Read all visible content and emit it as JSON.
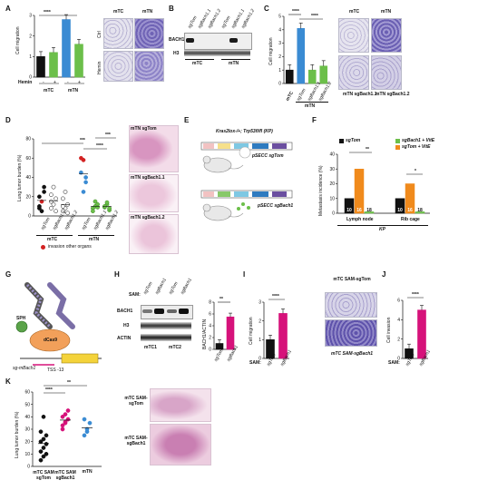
{
  "panel_letters": [
    "A",
    "B",
    "C",
    "D",
    "E",
    "F",
    "G",
    "H",
    "I",
    "J",
    "K"
  ],
  "colors": {
    "black": "#111111",
    "white": "#ffffff",
    "green": "#6cbf4a",
    "blue": "#3a8bd3",
    "orange": "#f08a1c",
    "magenta": "#d6127a",
    "red": "#d32222",
    "gray": "#bfbfbf"
  },
  "A": {
    "ylabel": "Cell migration",
    "sig": "****",
    "hemin_label": "Hemin",
    "hemin_signs": [
      "-",
      "+",
      "-",
      "+"
    ],
    "groups": [
      "mTC",
      "mTN"
    ],
    "image_headers": [
      "mTC",
      "mTN"
    ],
    "image_rows": [
      "Ctrl",
      "Hemin"
    ],
    "chart_data": {
      "type": "bar",
      "categories": [
        "mTC -",
        "mTC +",
        "mTN -",
        "mTN +"
      ],
      "values": [
        1.0,
        1.2,
        2.8,
        1.6
      ],
      "ylim": [
        0,
        3
      ],
      "yticks": [
        "0",
        "1",
        "2",
        "3"
      ],
      "ylabel": "Cell migration"
    }
  },
  "B": {
    "lane_labels": [
      "sgTom",
      "sgBach1.1",
      "sgBach1.2",
      "sgTom",
      "sgBach1.1",
      "sgBach1.2"
    ],
    "rows": [
      "BACH1",
      "H3"
    ],
    "groups": [
      "mTC",
      "mTN"
    ]
  },
  "C": {
    "ylabel": "Cell migration",
    "sig_left": "****",
    "sig_right": "****",
    "x_labels": [
      "mTC",
      "sgTom",
      "sgBach1.1",
      "sgBach1.2"
    ],
    "group": "mTN",
    "image_headers": [
      "mTC",
      "mTN"
    ],
    "image_captions": [
      "mTN sgBach1.1",
      "mTN sgBach1.2"
    ],
    "chart_data": {
      "type": "bar",
      "categories": [
        "mTC",
        "sgTom",
        "sgBach1.1",
        "sgBach1.2"
      ],
      "values": [
        1.0,
        4.1,
        1.0,
        1.3
      ],
      "ylim": [
        0,
        5
      ],
      "yticks": [
        "0",
        "1",
        "2",
        "3",
        "4",
        "5"
      ],
      "ylabel": "Cell migration"
    }
  },
  "D": {
    "ylabel": "Lung tumor burden (%)",
    "sig": [
      "***",
      "****",
      "***"
    ],
    "x_labels": [
      "sgTom",
      "sgBach1.1",
      "sgBach1.2",
      "sgTom",
      "sgBach1.1",
      "sgBach1.2"
    ],
    "groups": [
      "mTC",
      "mTN"
    ],
    "legend": "invasion other organs",
    "image_captions": [
      "mTN sgTom",
      "mTN sgBach1.1",
      "mTN sgBach1.2"
    ],
    "chart_data": {
      "type": "scatter",
      "categories": [
        "mTC sgTom",
        "mTC sgBach1.1",
        "mTC sgBach1.2",
        "mTN sgTom",
        "mTN sgBach1.1",
        "mTN sgBach1.2"
      ],
      "series": [
        {
          "values": [
            [
              20,
              15,
              25,
              10,
              5,
              30,
              8
            ],
            [
              22,
              12,
              18,
              8,
              30,
              5,
              15
            ],
            [
              18,
              8,
              12,
              5,
              25,
              3,
              10
            ],
            [
              45,
              58,
              35,
              60,
              25,
              40
            ],
            [
              8,
              10,
              12,
              5,
              15,
              9
            ],
            [
              9,
              12,
              6,
              10,
              14,
              8
            ]
          ]
        }
      ],
      "ylim": [
        0,
        80
      ],
      "yticks": [
        "0",
        "20",
        "40",
        "60",
        "80"
      ],
      "ylabel": "Lung tumor burden (%)"
    }
  },
  "E": {
    "title": "Kras2lox-/+; Trp53fl/fl (KP)",
    "construct1": "pSECC sgTom",
    "construct2": "pSECC sgBach1"
  },
  "F": {
    "ylabel": "Metastasis incidence (%)",
    "legend": [
      "sgTom",
      "sgBach1 + VitE",
      "sgTom + VitE"
    ],
    "sig": [
      "**",
      "*"
    ],
    "x_labels": [
      "Lymph node",
      "Rib cage"
    ],
    "xlabel": "KP",
    "bar_labels": [
      "10",
      "16",
      "18",
      "10",
      "16",
      "18"
    ],
    "chart_data": {
      "type": "bar",
      "categories": [
        "Lymph node",
        "Rib cage"
      ],
      "series": [
        {
          "name": "sgTom",
          "values": [
            10,
            10
          ]
        },
        {
          "name": "sgTom + VitE",
          "values": [
            30,
            20
          ]
        },
        {
          "name": "sgBach1 + VitE",
          "values": [
            1,
            1
          ]
        }
      ],
      "ylim": [
        0,
        40
      ],
      "yticks": [
        "0",
        "10",
        "20",
        "30",
        "40"
      ],
      "ylabel": "Metastasis incidence (%)"
    }
  },
  "G": {
    "labels": [
      "SPH",
      "dCas9",
      "sg-mBach1",
      "TSS -13"
    ]
  },
  "H": {
    "sam_label": "SAM:",
    "lane_labels": [
      "sgTom",
      "sgBach1",
      "sgTom",
      "sgBach1"
    ],
    "rows": [
      "BACH1",
      "H3",
      "ACTIN"
    ],
    "groups": [
      "mTC1",
      "mTC2"
    ],
    "ylabel": "BACH1/ACTIN",
    "sig": "**",
    "x_labels": [
      "sgTom",
      "sgBach1"
    ],
    "chart_data": {
      "type": "bar",
      "categories": [
        "sgTom",
        "sgBach1"
      ],
      "values": [
        1.0,
        5.5
      ],
      "ylim": [
        0,
        8
      ],
      "yticks": [
        "0",
        "2",
        "4",
        "6",
        "8"
      ],
      "ylabel": "BACH1/ACTIN"
    }
  },
  "I": {
    "ylabel": "Cell migration",
    "sig": "****",
    "sam_label": "SAM:",
    "x_labels": [
      "sgTom",
      "sgBach1"
    ],
    "image_top": "mTC SAM-sgTom",
    "image_bottom": "mTC SAM-sgBach1",
    "chart_data": {
      "type": "bar",
      "categories": [
        "sgTom",
        "sgBach1"
      ],
      "values": [
        1.0,
        2.4
      ],
      "ylim": [
        0,
        3
      ],
      "yticks": [
        "0",
        "1",
        "2",
        "3"
      ],
      "ylabel": "Cell migration"
    }
  },
  "J": {
    "ylabel": "Cell invasion",
    "sig": "****",
    "sam_label": "SAM:",
    "x_labels": [
      "sgTom",
      "sgBach1"
    ],
    "chart_data": {
      "type": "bar",
      "categories": [
        "sgTom",
        "sgBach1"
      ],
      "values": [
        1.0,
        5.0
      ],
      "ylim": [
        0,
        6
      ],
      "yticks": [
        "0",
        "2",
        "4",
        "6"
      ],
      "ylabel": "Cell invasion"
    }
  },
  "K": {
    "ylabel": "Lung tumor burden (%)",
    "sig": [
      "****",
      "**"
    ],
    "x_labels": [
      "mTC SAM sgTom",
      "mTC SAM sgBach1",
      "mTN"
    ],
    "image_captions": [
      "mTC SAM-sgTom",
      "mTC SAM-sgBach1"
    ],
    "chart_data": {
      "type": "scatter",
      "categories": [
        "mTC SAM sgTom",
        "mTC SAM sgBach1",
        "mTN"
      ],
      "series": [
        {
          "values": [
            [
              5,
              8,
              10,
              12,
              15,
              18,
              20,
              22,
              25,
              28,
              40
            ],
            [
              30,
              35,
              38,
              40,
              42,
              45,
              33,
              36
            ],
            [
              25,
              30,
              35,
              38,
              28
            ]
          ]
        }
      ],
      "ylim": [
        0,
        60
      ],
      "yticks": [
        "0",
        "10",
        "20",
        "30",
        "40",
        "50",
        "60"
      ],
      "ylabel": "Lung tumor burden (%)"
    }
  }
}
